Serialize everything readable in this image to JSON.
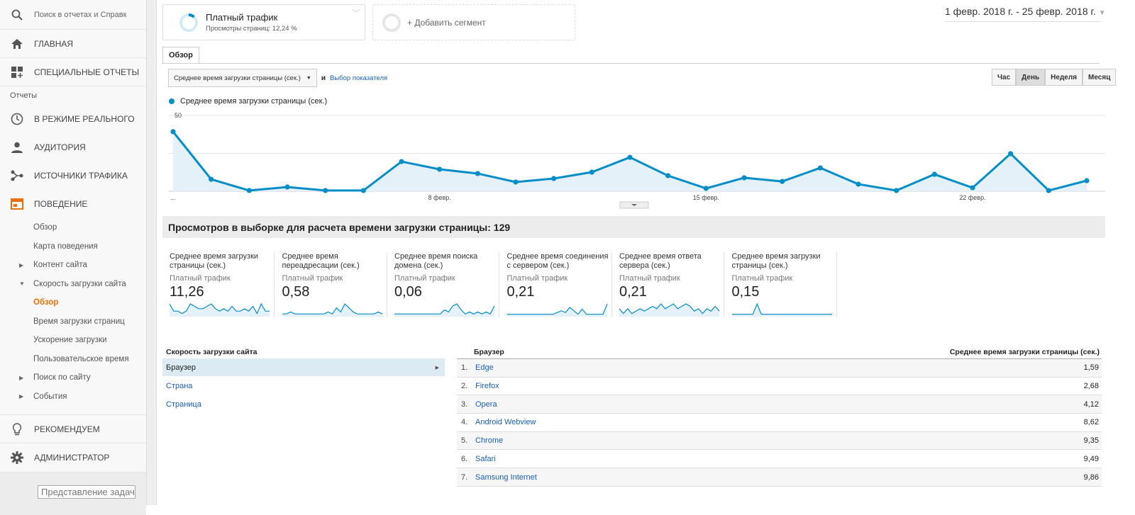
{
  "sidebar": {
    "search_placeholder": "Поиск в отчетах и Справк",
    "home": "ГЛАВНАЯ",
    "custom_reports": "СПЕЦИАЛЬНЫЕ ОТЧЕТЫ",
    "reports_heading": "Отчеты",
    "realtime": "В РЕЖИМЕ РЕАЛЬНОГО",
    "audience": "АУДИТОРИЯ",
    "acquisition": "ИСТОЧНИКИ ТРАФИКА",
    "behavior": "ПОВЕДЕНИЕ",
    "behavior_items": [
      "Обзор",
      "Карта поведения",
      "Контент сайта",
      "Скорость загрузки сайта",
      "Обзор",
      "Время загрузки страниц",
      "Ускорение загрузки",
      "Пользовательское время",
      "Поиск по сайту",
      "События"
    ],
    "discover": "РЕКОМЕНДУЕМ",
    "admin": "АДМИНИСТРАТОР",
    "task_view": "Представление задач",
    "brand_color": "#e8710a"
  },
  "segments": {
    "segment_name": "Платный трафик",
    "segment_sub": "Просмотры страниц: 12,24 %",
    "add_segment": "+ Добавить сегмент"
  },
  "date_range": "1 февр. 2018 г. - 25 февр. 2018 г.",
  "tab": "Обзор",
  "controls": {
    "metric_select": "Среднее время загрузки страницы (сек.)",
    "and": "и",
    "choose_metric": "Выбор показателя",
    "granularity": [
      "Час",
      "День",
      "Неделя",
      "Месяц"
    ],
    "selected_granularity": "День"
  },
  "chart_data": {
    "type": "area",
    "legend": "Среднее время загрузки страницы (сек.)",
    "x": [
      "1 февр.",
      "2 февр.",
      "3 февр.",
      "4 февр.",
      "5 февр.",
      "6 февр.",
      "7 февр.",
      "8 февр.",
      "9 февр.",
      "10 февр.",
      "11 февр.",
      "12 февр.",
      "13 февр.",
      "14 февр.",
      "15 февр.",
      "16 февр.",
      "17 февр.",
      "18 февр.",
      "19 февр.",
      "20 февр.",
      "21 февр.",
      "22 февр.",
      "23 февр.",
      "24 февр.",
      "25 февр."
    ],
    "values": [
      39.3,
      7.9,
      0.5,
      2.8,
      0.5,
      0.5,
      19.6,
      14.5,
      11.7,
      6.1,
      8.4,
      12.6,
      22.4,
      10.3,
      1.9,
      8.9,
      6.5,
      15.4,
      4.7,
      0.5,
      11.2,
      2.3,
      24.8,
      0.5,
      7.0
    ],
    "y_ticks": [
      "50",
      "25"
    ],
    "x_tick_labels": [
      "...",
      "8 февр.",
      "15 февр.",
      "22 февр."
    ],
    "ylim": [
      0,
      50
    ],
    "color": "#058dc7"
  },
  "summary_title": "Просмотров в выборке для расчета времени загрузки страницы: 129",
  "metrics": [
    {
      "name": "Среднее время загрузки страницы (сек.)",
      "segment": "Платный трафик",
      "value": "11,26",
      "spark": [
        5,
        2,
        2,
        1,
        2,
        5,
        4,
        3,
        3,
        4,
        5,
        3,
        2,
        3,
        2,
        4,
        2,
        2,
        3,
        2,
        4,
        1,
        5,
        2,
        2
      ]
    },
    {
      "name": "Среднее время переадресации (сек.)",
      "segment": "Платный трафик",
      "value": "0,58",
      "spark": [
        1,
        1,
        2,
        1,
        1,
        1,
        1,
        1,
        1,
        1,
        1,
        2,
        1,
        4,
        2,
        6,
        4,
        2,
        1,
        1,
        1,
        1,
        1,
        2,
        1
      ]
    },
    {
      "name": "Среднее время поиска домена (сек.)",
      "segment": "Платный трафик",
      "value": "0,06",
      "spark": [
        1,
        1,
        1,
        1,
        1,
        1,
        1,
        1,
        1,
        1,
        1,
        1,
        3,
        2,
        5,
        6,
        3,
        1,
        2,
        1,
        2,
        1,
        2,
        1,
        5
      ]
    },
    {
      "name": "Среднее время соединения с сервером (сек.)",
      "segment": "Платный трафик",
      "value": "0,21",
      "spark": [
        1,
        1,
        1,
        1,
        1,
        1,
        1,
        1,
        1,
        1,
        1,
        1,
        2,
        3,
        2,
        5,
        3,
        1,
        4,
        1,
        1,
        1,
        1,
        1,
        7
      ]
    },
    {
      "name": "Среднее время ответа сервера (сек.)",
      "segment": "Платный трафик",
      "value": "0,21",
      "spark": [
        3,
        1,
        3,
        1,
        2,
        3,
        2,
        3,
        4,
        3,
        5,
        3,
        4,
        5,
        3,
        4,
        5,
        4,
        2,
        3,
        1,
        3,
        2,
        4,
        2
      ]
    },
    {
      "name": "Среднее время загрузки страницы (сек.)",
      "segment": "Платный трафик",
      "value": "0,15",
      "spark": [
        1,
        1,
        1,
        1,
        1,
        1,
        7,
        1,
        1,
        1,
        1,
        1,
        1,
        1,
        1,
        1,
        1,
        1,
        1,
        1,
        1,
        1,
        1,
        1,
        1
      ]
    }
  ],
  "dimensions": {
    "heading": "Скорость загрузки сайта",
    "items": [
      "Браузер",
      "Страна",
      "Страница"
    ],
    "selected": "Браузер"
  },
  "table": {
    "col_dim": "Браузер",
    "col_metric": "Среднее время загрузки страницы (сек.)",
    "rows": [
      {
        "n": "1.",
        "name": "Edge",
        "value": "1,59"
      },
      {
        "n": "2.",
        "name": "Firefox",
        "value": "2,68"
      },
      {
        "n": "3.",
        "name": "Opera",
        "value": "4,12"
      },
      {
        "n": "4.",
        "name": "Android Webview",
        "value": "8,62"
      },
      {
        "n": "5.",
        "name": "Chrome",
        "value": "9,35"
      },
      {
        "n": "6.",
        "name": "Safari",
        "value": "9,49"
      },
      {
        "n": "7.",
        "name": "Samsung Internet",
        "value": "9,86"
      }
    ]
  }
}
